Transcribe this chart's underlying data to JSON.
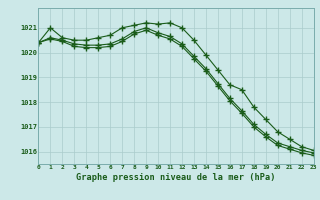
{
  "title": "Graphe pression niveau de la mer (hPa)",
  "background_color": "#cce8e8",
  "grid_color": "#aacccc",
  "line_color": "#1a5c1a",
  "xlim": [
    0,
    23
  ],
  "ylim": [
    1015.5,
    1021.8
  ],
  "yticks": [
    1016,
    1017,
    1018,
    1019,
    1020,
    1021
  ],
  "xticks": [
    0,
    1,
    2,
    3,
    4,
    5,
    6,
    7,
    8,
    9,
    10,
    11,
    12,
    13,
    14,
    15,
    16,
    17,
    18,
    19,
    20,
    21,
    22,
    23
  ],
  "series1": [
    1020.4,
    1021.0,
    1020.6,
    1020.5,
    1020.5,
    1020.6,
    1020.7,
    1021.0,
    1021.1,
    1021.2,
    1021.15,
    1021.2,
    1021.0,
    1020.5,
    1019.9,
    1019.3,
    1018.7,
    1018.5,
    1017.8,
    1017.3,
    1016.8,
    1016.5,
    1016.2,
    1016.05
  ],
  "series2": [
    1020.4,
    1020.6,
    1020.5,
    1020.35,
    1020.3,
    1020.3,
    1020.35,
    1020.55,
    1020.85,
    1021.0,
    1020.8,
    1020.65,
    1020.35,
    1019.85,
    1019.35,
    1018.75,
    1018.15,
    1017.65,
    1017.1,
    1016.7,
    1016.35,
    1016.2,
    1016.05,
    1015.95
  ],
  "series3": [
    1020.4,
    1020.55,
    1020.45,
    1020.25,
    1020.2,
    1020.2,
    1020.25,
    1020.45,
    1020.75,
    1020.9,
    1020.7,
    1020.55,
    1020.25,
    1019.75,
    1019.25,
    1018.65,
    1018.05,
    1017.55,
    1017.0,
    1016.6,
    1016.25,
    1016.1,
    1015.95,
    1015.85
  ]
}
